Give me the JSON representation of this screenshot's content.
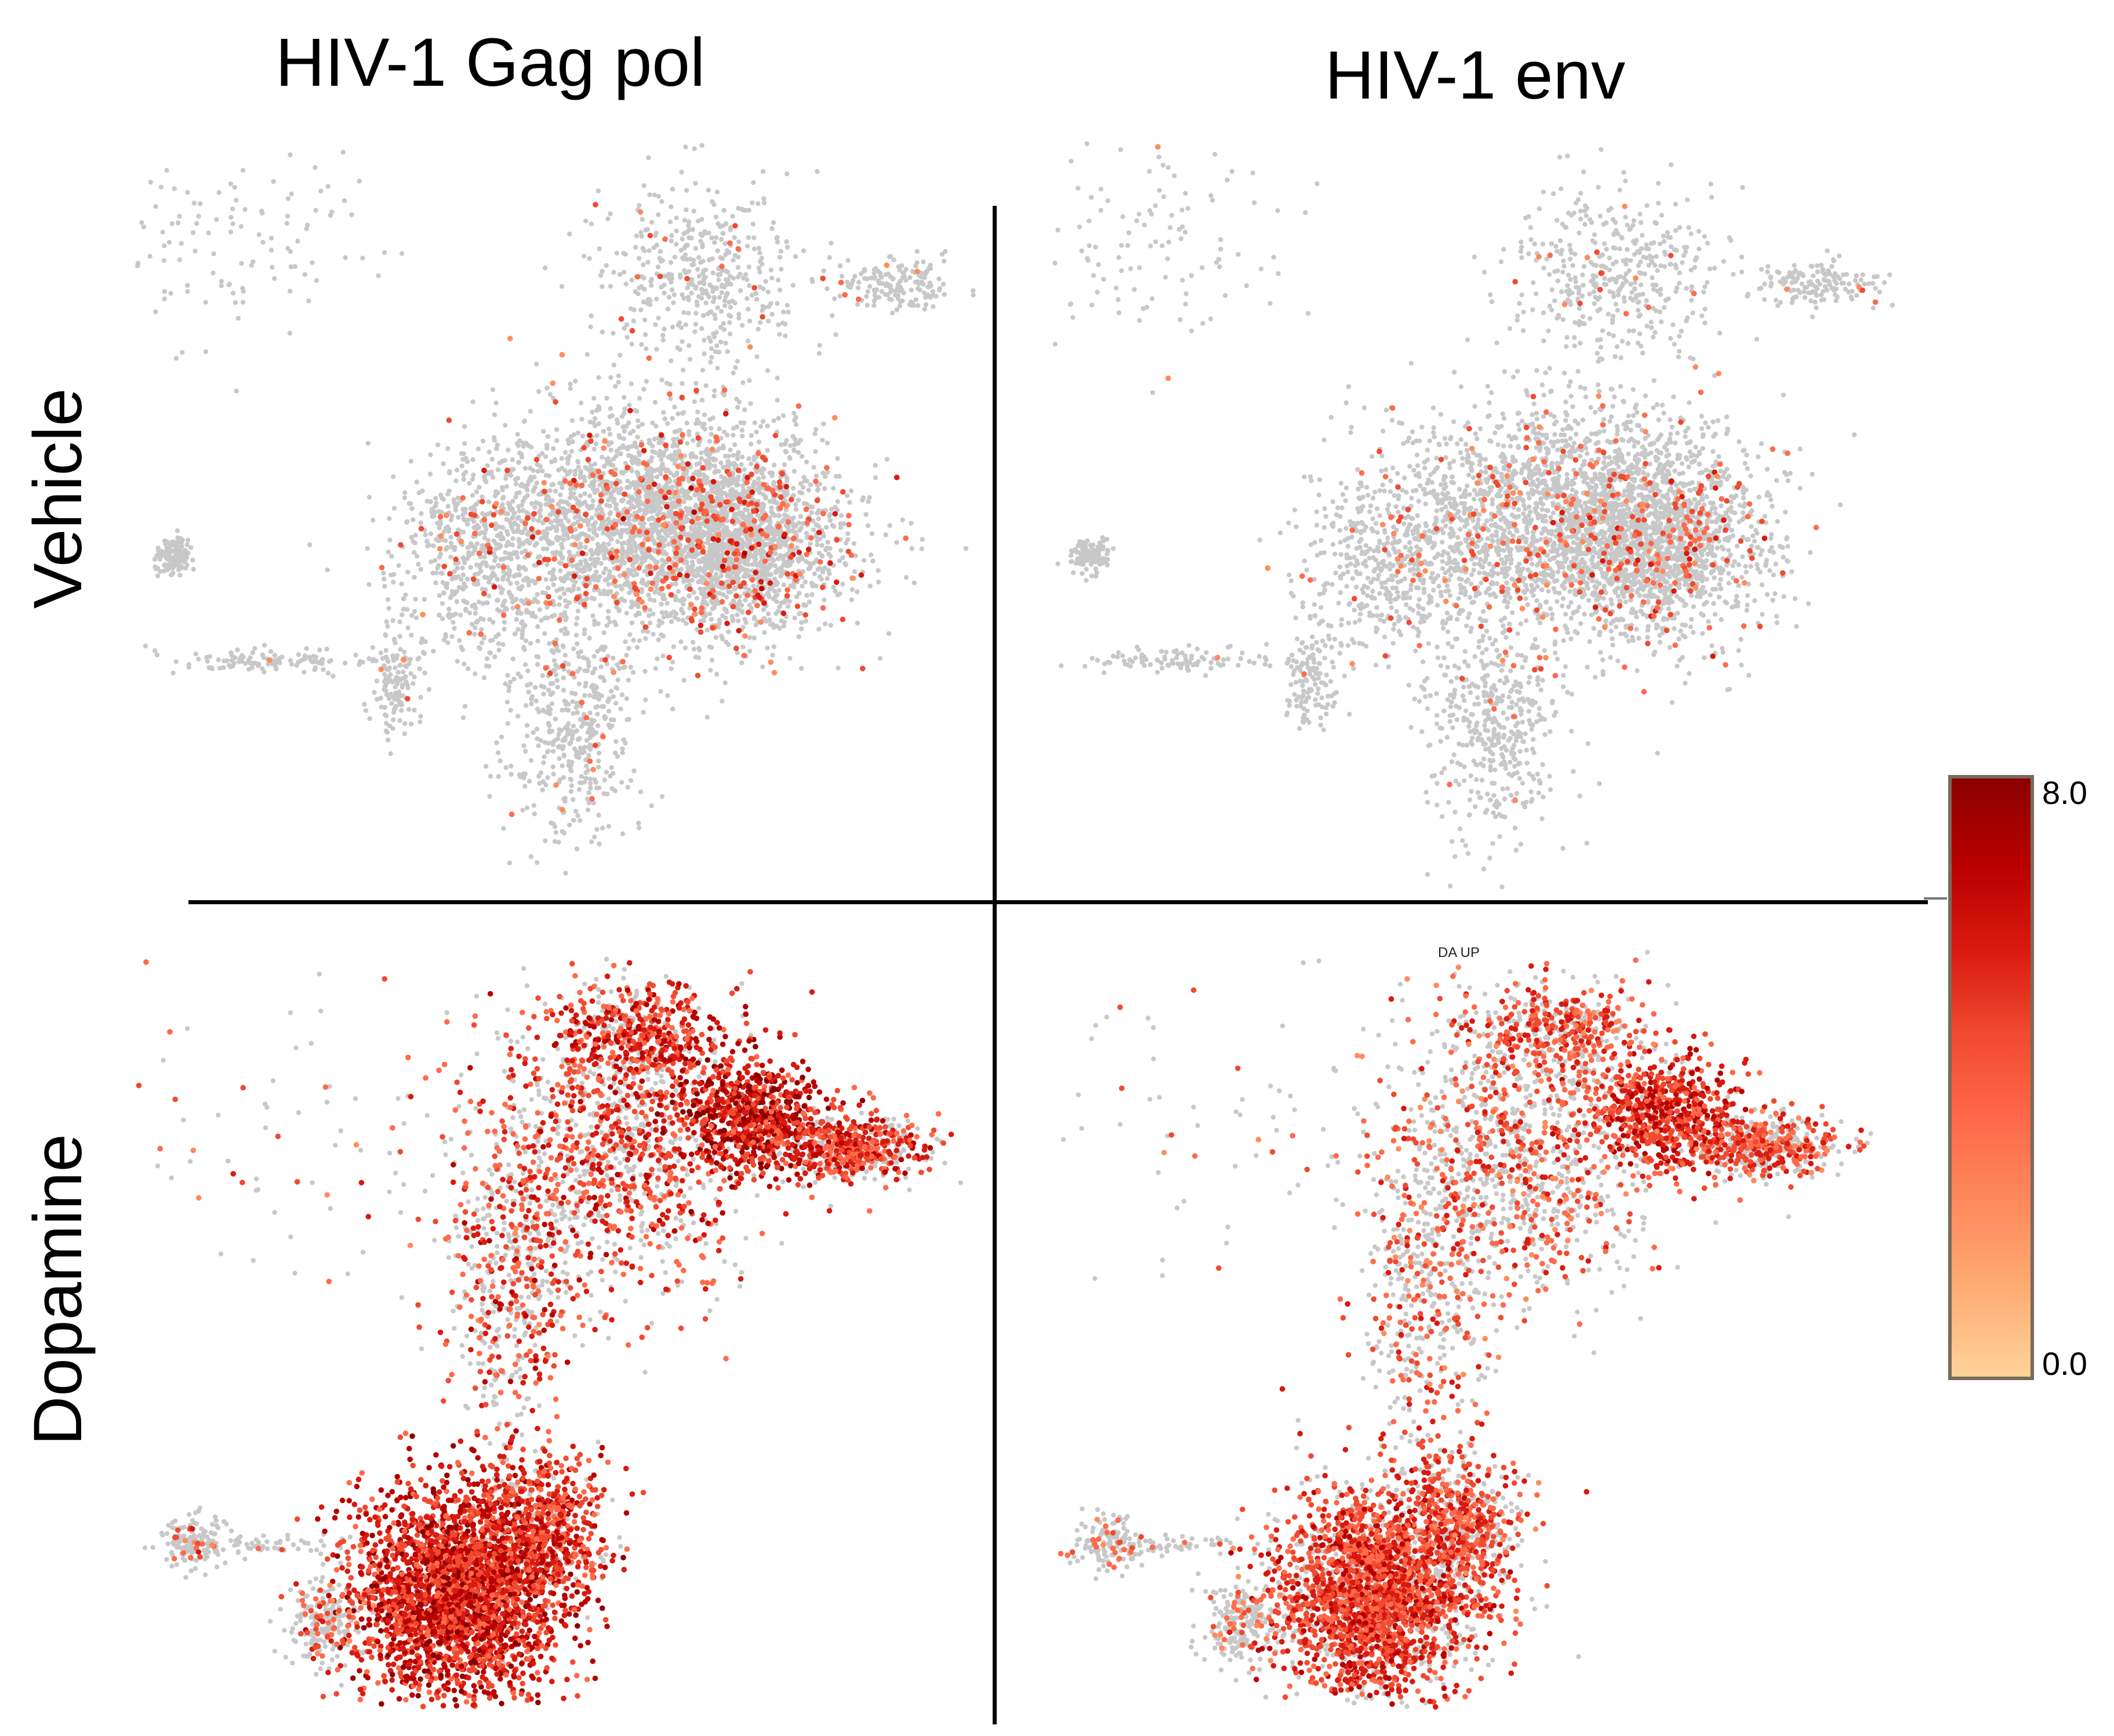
{
  "figure": {
    "column_titles": [
      "HIV-1 Gag pol",
      "HIV-1 env"
    ],
    "row_titles": [
      "Vehicle",
      "Dopamine"
    ],
    "stray_label": "DA UP"
  },
  "colors": {
    "background_cell": "#c8c8c8",
    "scale": [
      "#ffd39b",
      "#ffad75",
      "#ff8b5c",
      "#ff6a4a",
      "#f04a30",
      "#d81a10",
      "#b80000",
      "#8b0000"
    ]
  },
  "chart_data": {
    "type": "scatter",
    "description_kind": "UMAP expression feature plots",
    "color_scale": {
      "min": 0.0,
      "max": 8.0,
      "min_label": "0.0",
      "max_label": "8.0"
    },
    "panels": [
      {
        "id": "vehicle-gag-pol",
        "row": "Vehicle",
        "column": "HIV-1 Gag pol",
        "condition": "vehicle",
        "seed": 11,
        "expr_rate": 0.09,
        "expr_level": 0.6
      },
      {
        "id": "vehicle-env",
        "row": "Vehicle",
        "column": "HIV-1 env",
        "condition": "vehicle",
        "seed": 23,
        "expr_rate": 0.08,
        "expr_level": 0.55
      },
      {
        "id": "dopamine-gag-pol",
        "row": "Dopamine",
        "column": "HIV-1 Gag pol",
        "condition": "dopamine",
        "seed": 37,
        "expr_rate": 0.55,
        "expr_level": 0.72
      },
      {
        "id": "dopamine-env",
        "row": "Dopamine",
        "column": "HIV-1 env",
        "condition": "dopamine",
        "seed": 51,
        "expr_rate": 0.42,
        "expr_level": 0.62
      }
    ]
  }
}
